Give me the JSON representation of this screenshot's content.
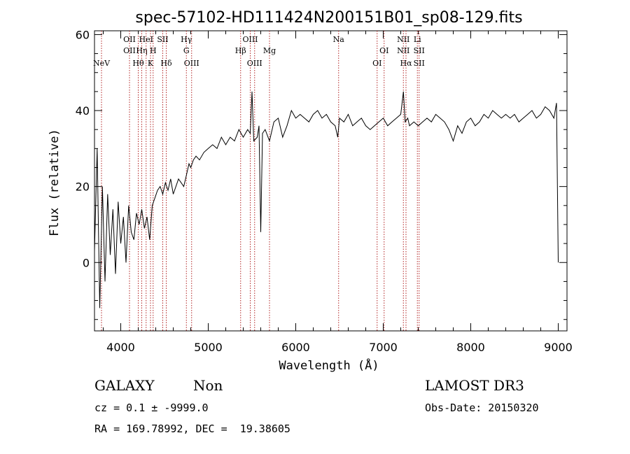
{
  "chart_data": {
    "type": "line",
    "title": "spec-57102-HD111424N200151B01_sp08-129.fits",
    "xlabel": "Wavelength (Å)",
    "ylabel": "Flux (relative)",
    "xlim": [
      3700,
      9100
    ],
    "ylim": [
      -18,
      61
    ],
    "xticks": [
      4000,
      5000,
      6000,
      7000,
      8000,
      9000
    ],
    "yticks": [
      0,
      20,
      40,
      60
    ],
    "grid": false,
    "line_color": "#000000",
    "marker_color": "#b22222",
    "series": [
      {
        "x": [
          3700,
          3730,
          3760,
          3790,
          3820,
          3850,
          3880,
          3910,
          3940,
          3970,
          4000,
          4030,
          4060,
          4090,
          4120,
          4150,
          4180,
          4210,
          4240,
          4270,
          4300,
          4330,
          4360,
          4390,
          4420,
          4450,
          4480,
          4510,
          4540,
          4570,
          4600,
          4630,
          4660,
          4690,
          4720,
          4750,
          4780,
          4800,
          4830,
          4860,
          4900,
          4950,
          5000,
          5050,
          5100,
          5150,
          5200,
          5250,
          5300,
          5350,
          5400,
          5450,
          5480,
          5500,
          5520,
          5560,
          5580,
          5600,
          5620,
          5650,
          5700,
          5750,
          5800,
          5850,
          5900,
          5950,
          6000,
          6050,
          6100,
          6150,
          6200,
          6250,
          6300,
          6350,
          6400,
          6450,
          6480,
          6500,
          6550,
          6600,
          6650,
          6700,
          6750,
          6800,
          6850,
          6900,
          6950,
          7000,
          7050,
          7100,
          7150,
          7200,
          7230,
          7250,
          7280,
          7300,
          7350,
          7400,
          7450,
          7500,
          7550,
          7600,
          7650,
          7700,
          7750,
          7800,
          7850,
          7900,
          7950,
          8000,
          8050,
          8100,
          8150,
          8200,
          8250,
          8300,
          8350,
          8400,
          8450,
          8500,
          8550,
          8600,
          8650,
          8700,
          8750,
          8800,
          8850,
          8900,
          8950,
          8980,
          9000
        ],
        "values": [
          3,
          30,
          -12,
          20,
          -5,
          18,
          2,
          14,
          -3,
          16,
          5,
          12,
          0,
          15,
          8,
          6,
          13,
          10,
          14,
          9,
          12,
          6,
          15,
          17,
          19,
          20,
          18,
          21,
          19,
          22,
          18,
          20,
          22,
          21,
          20,
          23,
          26,
          25,
          27,
          28,
          27,
          29,
          30,
          31,
          30,
          33,
          31,
          33,
          32,
          35,
          33,
          35,
          34,
          45,
          32,
          33,
          36,
          8,
          34,
          35,
          32,
          37,
          38,
          33,
          36,
          40,
          38,
          39,
          38,
          37,
          39,
          40,
          38,
          39,
          37,
          36,
          33,
          38,
          37,
          39,
          36,
          37,
          38,
          36,
          35,
          36,
          37,
          38,
          36,
          37,
          38,
          39,
          45,
          37,
          38,
          36,
          37,
          36,
          37,
          38,
          37,
          39,
          38,
          37,
          35,
          32,
          36,
          34,
          37,
          38,
          36,
          37,
          39,
          38,
          40,
          39,
          38,
          39,
          38,
          39,
          37,
          38,
          39,
          40,
          38,
          39,
          41,
          40,
          38,
          42,
          0
        ]
      }
    ],
    "lines": [
      {
        "x": 3780,
        "labels": [
          {
            "text": "NeV",
            "row": 3
          }
        ]
      },
      {
        "x": 4100,
        "labels": [
          {
            "text": "OII",
            "row": 1
          },
          {
            "text": "OII",
            "row": 2
          }
        ]
      },
      {
        "x": 4200,
        "labels": [
          {
            "text": "Hθ",
            "row": 3
          }
        ]
      },
      {
        "x": 4240,
        "labels": [
          {
            "text": "Hη",
            "row": 2
          }
        ]
      },
      {
        "x": 4290,
        "labels": [
          {
            "text": "HeI",
            "row": 1
          }
        ]
      },
      {
        "x": 4340,
        "labels": [
          {
            "text": "K",
            "row": 3
          }
        ]
      },
      {
        "x": 4370,
        "labels": [
          {
            "text": "H",
            "row": 2
          }
        ]
      },
      {
        "x": 4480,
        "labels": [
          {
            "text": "SII",
            "row": 1
          }
        ]
      },
      {
        "x": 4520,
        "labels": [
          {
            "text": "Hδ",
            "row": 3
          }
        ]
      },
      {
        "x": 4750,
        "labels": [
          {
            "text": "Hγ",
            "row": 1
          },
          {
            "text": "G",
            "row": 2
          }
        ]
      },
      {
        "x": 4810,
        "labels": [
          {
            "text": "OIII",
            "row": 3
          }
        ]
      },
      {
        "x": 5370,
        "labels": [
          {
            "text": "Hβ",
            "row": 2
          }
        ]
      },
      {
        "x": 5480,
        "labels": [
          {
            "text": "OIII",
            "row": 1
          }
        ]
      },
      {
        "x": 5530,
        "labels": [
          {
            "text": "OIII",
            "row": 3
          }
        ]
      },
      {
        "x": 5700,
        "labels": [
          {
            "text": "Mg",
            "row": 2
          }
        ]
      },
      {
        "x": 6490,
        "labels": [
          {
            "text": "Na",
            "row": 1
          }
        ]
      },
      {
        "x": 6930,
        "labels": [
          {
            "text": "OI",
            "row": 3
          }
        ]
      },
      {
        "x": 7010,
        "labels": [
          {
            "text": "OI",
            "row": 2
          }
        ]
      },
      {
        "x": 7230,
        "labels": [
          {
            "text": "NII",
            "row": 1
          },
          {
            "text": "NII",
            "row": 2
          }
        ]
      },
      {
        "x": 7260,
        "labels": [
          {
            "text": "Hα",
            "row": 3
          }
        ]
      },
      {
        "x": 7390,
        "labels": [
          {
            "text": "Li",
            "row": 1
          }
        ]
      },
      {
        "x": 7410,
        "labels": [
          {
            "text": "SII",
            "row": 2
          },
          {
            "text": "SII",
            "row": 3
          }
        ]
      }
    ]
  },
  "footer": {
    "class_type": "GALAXY",
    "subclass": "Non",
    "cz": "cz = 0.1 ± -9999.0",
    "coords": "RA = 169.78992, DEC =  19.38605",
    "survey": "LAMOST DR3",
    "obs_date": "Obs-Date: 20150320"
  }
}
